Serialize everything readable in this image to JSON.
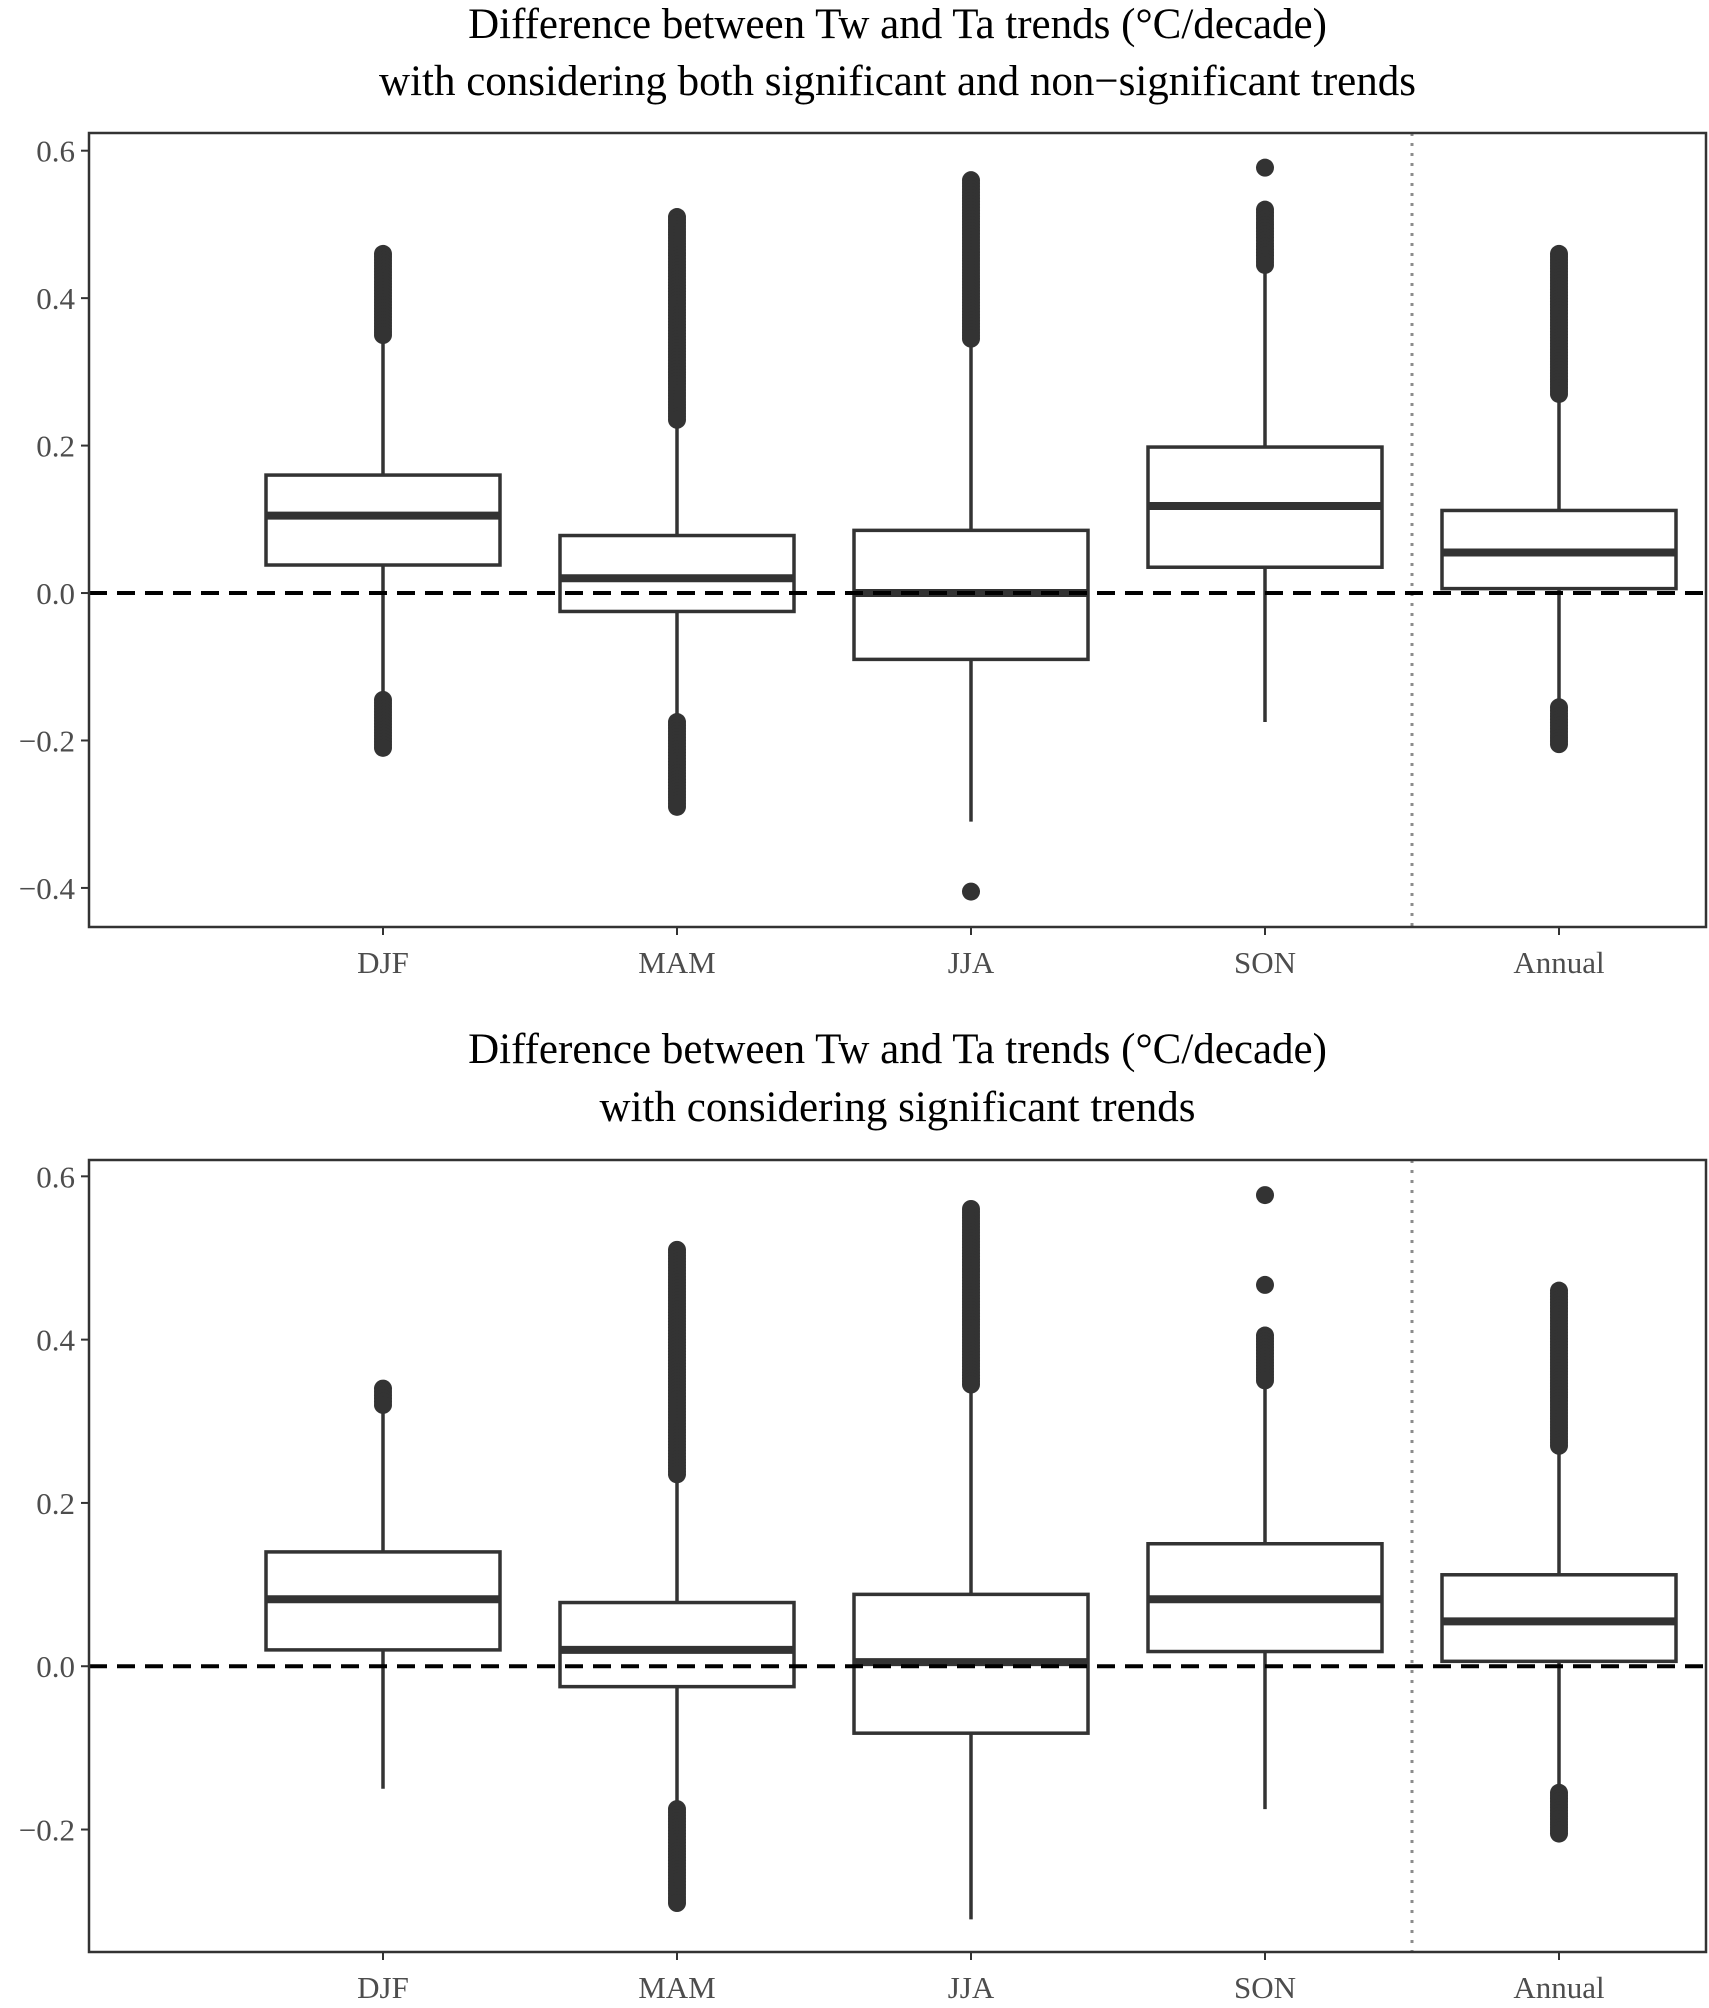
{
  "chart_data": [
    {
      "type": "box",
      "title_lines": [
        "Difference between Tw and Ta trends (°C/decade)",
        "with considering both significant and non−significant trends"
      ],
      "xlabel": "",
      "ylabel": "",
      "categories": [
        "DJF",
        "MAM",
        "JJA",
        "SON",
        "Annual"
      ],
      "yticks": [
        0.6,
        0.4,
        0.2,
        0.0,
        -0.2,
        -0.4
      ],
      "ytick_labels": [
        "0.6",
        "0.4",
        "0.2",
        "0.0",
        "−0.2",
        "−0.4"
      ],
      "ylim": [
        -0.453,
        0.624
      ],
      "grid": false,
      "reference_line": {
        "y": 0.0,
        "style": "dashed"
      },
      "separator": {
        "between": [
          "SON",
          "Annual"
        ],
        "style": "dotted"
      },
      "boxes": [
        {
          "category": "DJF",
          "whisker_low": -0.14,
          "q1": 0.038,
          "median": 0.105,
          "q3": 0.16,
          "whisker_high": 0.34,
          "outliers_high_range": [
            0.35,
            0.46
          ],
          "outliers_low_range": [
            -0.21,
            -0.145
          ],
          "outliers": []
        },
        {
          "category": "MAM",
          "whisker_low": -0.17,
          "q1": -0.025,
          "median": 0.02,
          "q3": 0.078,
          "whisker_high": 0.23,
          "outliers_high_range": [
            0.235,
            0.51
          ],
          "outliers_low_range": [
            -0.29,
            -0.175
          ],
          "outliers": []
        },
        {
          "category": "JJA",
          "whisker_low": -0.31,
          "q1": -0.09,
          "median": 0.0,
          "q3": 0.085,
          "whisker_high": 0.34,
          "outliers_high_range": [
            0.345,
            0.56
          ],
          "outliers_low_range": null,
          "outliers": [
            -0.405
          ]
        },
        {
          "category": "SON",
          "whisker_low": -0.175,
          "q1": 0.035,
          "median": 0.118,
          "q3": 0.198,
          "whisker_high": 0.44,
          "outliers_high_range": [
            0.445,
            0.52
          ],
          "outliers_low_range": null,
          "outliers": [
            0.577
          ]
        },
        {
          "category": "Annual",
          "whisker_low": -0.15,
          "q1": 0.006,
          "median": 0.055,
          "q3": 0.112,
          "whisker_high": 0.265,
          "outliers_high_range": [
            0.27,
            0.46
          ],
          "outliers_low_range": [
            -0.205,
            -0.155
          ],
          "outliers": []
        }
      ]
    },
    {
      "type": "box",
      "title_lines": [
        "Difference between Tw and Ta trends (°C/decade)",
        "with considering significant trends"
      ],
      "xlabel": "",
      "ylabel": "",
      "categories": [
        "DJF",
        "MAM",
        "JJA",
        "SON",
        "Annual"
      ],
      "yticks": [
        0.6,
        0.4,
        0.2,
        0.0,
        -0.2
      ],
      "ytick_labels": [
        "0.6",
        "0.4",
        "0.2",
        "0.0",
        "−0.2"
      ],
      "ylim": [
        -0.35,
        0.62
      ],
      "grid": false,
      "reference_line": {
        "y": 0.0,
        "style": "dashed"
      },
      "separator": {
        "between": [
          "SON",
          "Annual"
        ],
        "style": "dotted"
      },
      "boxes": [
        {
          "category": "DJF",
          "whisker_low": -0.15,
          "q1": 0.02,
          "median": 0.082,
          "q3": 0.14,
          "whisker_high": 0.315,
          "outliers_high_range": [
            0.32,
            0.34
          ],
          "outliers_low_range": null,
          "outliers": []
        },
        {
          "category": "MAM",
          "whisker_low": -0.17,
          "q1": -0.025,
          "median": 0.02,
          "q3": 0.078,
          "whisker_high": 0.23,
          "outliers_high_range": [
            0.235,
            0.51
          ],
          "outliers_low_range": [
            -0.29,
            -0.175
          ],
          "outliers": []
        },
        {
          "category": "JJA",
          "whisker_low": -0.31,
          "q1": -0.082,
          "median": 0.005,
          "q3": 0.088,
          "whisker_high": 0.34,
          "outliers_high_range": [
            0.345,
            0.56
          ],
          "outliers_low_range": null,
          "outliers": []
        },
        {
          "category": "SON",
          "whisker_low": -0.175,
          "q1": 0.018,
          "median": 0.082,
          "q3": 0.15,
          "whisker_high": 0.345,
          "outliers_high_range": [
            0.35,
            0.405
          ],
          "outliers_low_range": null,
          "outliers": [
            0.467,
            0.577
          ]
        },
        {
          "category": "Annual",
          "whisker_low": -0.15,
          "q1": 0.006,
          "median": 0.055,
          "q3": 0.112,
          "whisker_high": 0.265,
          "outliers_high_range": [
            0.27,
            0.46
          ],
          "outliers_low_range": [
            -0.205,
            -0.155
          ],
          "outliers": []
        }
      ]
    }
  ]
}
